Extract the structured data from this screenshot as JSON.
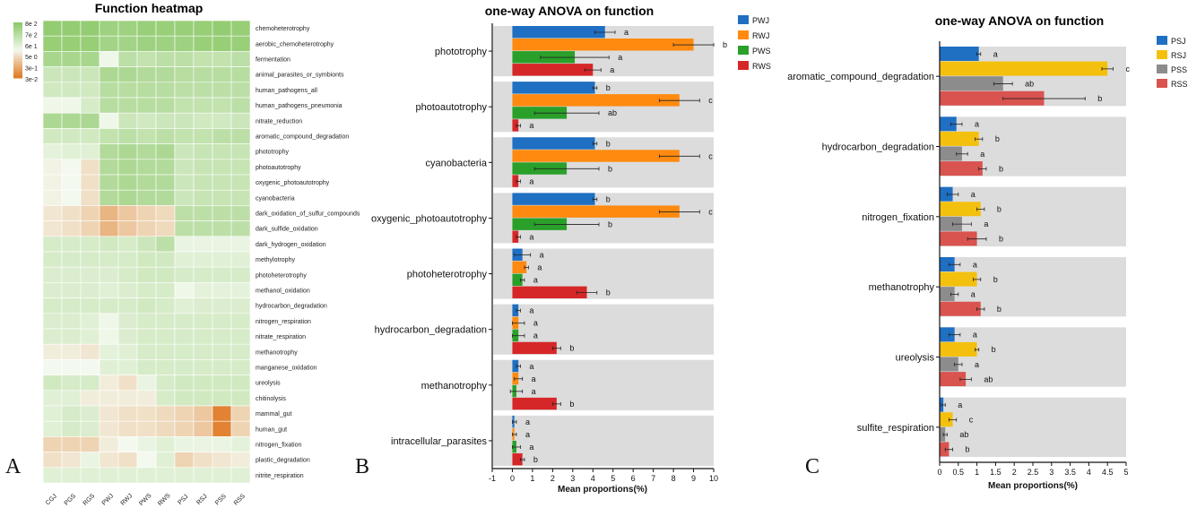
{
  "figure": {
    "panel_letters": [
      "A",
      "B",
      "C"
    ]
  },
  "chart_data": [
    {
      "type": "heatmap",
      "title": "Function heatmap",
      "columns": [
        "CGJ",
        "PGS",
        "RGS",
        "PWJ",
        "RWJ",
        "PWS",
        "RWS",
        "PSJ",
        "RSJ",
        "PSS",
        "RSS"
      ],
      "rows": [
        "chemoheterotrophy",
        "aerobic_chemoheterotrophy",
        "fermentation",
        "animal_parasites_or_symbionts",
        "human_pathogens_all",
        "human_pathogens_pneumonia",
        "nitrate_reduction",
        "aromatic_compound_degradation",
        "phototrophy",
        "photoautotrophy",
        "oxygenic_photoautotrophy",
        "cyanobacteria",
        "dark_oxidation_of_sulfur_compounds",
        "dark_sulfide_oxidation",
        "dark_hydrogen_oxidation",
        "methylotrophy",
        "photoheterotrophy",
        "methanol_oxidation",
        "hydrocarbon_degradation",
        "nitrogen_respiration",
        "nitrate_respiration",
        "methanotrophy",
        "manganese_oxidation",
        "ureolysis",
        "chitinolysis",
        "mammal_gut",
        "human_gut",
        "nitrogen_fixation",
        "plastic_degradation",
        "nitrite_respiration"
      ],
      "values": [
        [
          0.95,
          0.95,
          0.95,
          0.85,
          0.85,
          0.9,
          0.9,
          0.9,
          0.92,
          0.95,
          0.92
        ],
        [
          0.92,
          0.92,
          0.92,
          0.8,
          0.8,
          0.85,
          0.85,
          0.85,
          0.9,
          0.92,
          0.9
        ],
        [
          0.75,
          0.75,
          0.75,
          0.05,
          0.55,
          0.5,
          0.55,
          0.55,
          0.5,
          0.5,
          0.55
        ],
        [
          0.4,
          0.4,
          0.4,
          0.7,
          0.7,
          0.65,
          0.65,
          0.6,
          0.6,
          0.6,
          0.6
        ],
        [
          0.35,
          0.35,
          0.35,
          0.6,
          0.6,
          0.6,
          0.6,
          0.55,
          0.55,
          0.55,
          0.55
        ],
        [
          0.05,
          0.05,
          0.3,
          0.6,
          0.6,
          0.6,
          0.6,
          0.5,
          0.5,
          0.5,
          0.55
        ],
        [
          0.7,
          0.7,
          0.7,
          0.05,
          0.4,
          0.35,
          0.4,
          0.4,
          0.35,
          0.35,
          0.4
        ],
        [
          0.35,
          0.35,
          0.35,
          0.5,
          0.55,
          0.5,
          0.55,
          0.5,
          0.5,
          0.55,
          0.55
        ],
        [
          0.15,
          0.2,
          0.2,
          0.65,
          0.7,
          0.65,
          0.7,
          0.4,
          0.45,
          0.45,
          0.45
        ],
        [
          -0.05,
          0.0,
          -0.2,
          0.65,
          0.7,
          0.65,
          0.65,
          0.4,
          0.45,
          0.45,
          0.45
        ],
        [
          -0.05,
          0.0,
          -0.2,
          0.65,
          0.7,
          0.65,
          0.65,
          0.4,
          0.45,
          0.45,
          0.45
        ],
        [
          -0.05,
          0.0,
          -0.2,
          0.65,
          0.7,
          0.65,
          0.65,
          0.4,
          0.45,
          0.45,
          0.45
        ],
        [
          -0.15,
          -0.2,
          -0.3,
          -0.55,
          -0.4,
          -0.3,
          -0.25,
          0.55,
          0.55,
          0.55,
          0.55
        ],
        [
          -0.15,
          -0.2,
          -0.3,
          -0.55,
          -0.4,
          -0.3,
          -0.25,
          0.55,
          0.55,
          0.55,
          0.55
        ],
        [
          0.3,
          0.3,
          0.3,
          0.35,
          0.3,
          0.4,
          0.55,
          0.1,
          0.1,
          0.1,
          0.1
        ],
        [
          0.3,
          0.3,
          0.3,
          0.3,
          0.3,
          0.35,
          0.35,
          0.2,
          0.2,
          0.2,
          0.2
        ],
        [
          0.25,
          0.25,
          0.25,
          0.25,
          0.3,
          0.35,
          0.35,
          0.3,
          0.3,
          0.3,
          0.3
        ],
        [
          0.25,
          0.25,
          0.25,
          0.2,
          0.25,
          0.3,
          0.3,
          0.05,
          0.15,
          0.15,
          0.15
        ],
        [
          0.3,
          0.3,
          0.3,
          0.3,
          0.3,
          0.35,
          0.3,
          0.2,
          0.25,
          0.25,
          0.25
        ],
        [
          0.25,
          0.25,
          0.2,
          0.05,
          0.25,
          0.3,
          0.3,
          0.3,
          0.3,
          0.3,
          0.3
        ],
        [
          0.25,
          0.25,
          0.2,
          0.05,
          0.25,
          0.3,
          0.3,
          0.3,
          0.3,
          0.3,
          0.3
        ],
        [
          -0.1,
          -0.1,
          -0.15,
          0.15,
          0.2,
          0.3,
          0.3,
          0.3,
          0.3,
          0.3,
          0.3
        ],
        [
          0.0,
          0.0,
          0.0,
          0.2,
          0.2,
          0.3,
          0.3,
          0.3,
          0.3,
          0.3,
          0.3
        ],
        [
          0.35,
          0.3,
          0.3,
          -0.1,
          -0.2,
          0.1,
          0.3,
          0.35,
          0.35,
          0.35,
          0.35
        ],
        [
          0.2,
          0.2,
          -0.1,
          -0.1,
          -0.1,
          -0.1,
          0.3,
          0.35,
          0.35,
          0.35,
          0.35
        ],
        [
          0.2,
          0.3,
          0.25,
          -0.15,
          -0.2,
          -0.2,
          -0.25,
          -0.3,
          -0.4,
          -0.95,
          -0.3
        ],
        [
          0.2,
          0.3,
          0.25,
          -0.15,
          -0.2,
          -0.2,
          -0.25,
          -0.3,
          -0.4,
          -0.95,
          -0.3
        ],
        [
          -0.3,
          -0.3,
          -0.3,
          -0.1,
          0.0,
          0.1,
          0.2,
          0.1,
          0.1,
          0.1,
          0.15
        ],
        [
          -0.2,
          -0.15,
          0.1,
          -0.15,
          -0.2,
          0.0,
          0.2,
          -0.3,
          -0.2,
          -0.15,
          -0.1
        ],
        [
          0.2,
          0.2,
          0.2,
          0.2,
          0.2,
          0.2,
          0.2,
          0.2,
          0.2,
          0.2,
          0.2
        ]
      ],
      "legend_labels": [
        "8e 2",
        "7e 2",
        "6e 1",
        "5e 0",
        "3e-1",
        "3e-2"
      ],
      "colors": {
        "high": "#8fca6c",
        "mid": "#f4f9ef",
        "low": "#e07d28"
      }
    },
    {
      "type": "bar",
      "orientation": "horizontal",
      "title": "one-way ANOVA on function",
      "xlabel": "Mean proportions(%)",
      "xlim": [
        -1,
        10
      ],
      "xticks": [
        -1,
        0,
        1,
        2,
        3,
        4,
        5,
        6,
        7,
        8,
        9,
        10
      ],
      "categories": [
        "phototrophy",
        "photoautotrophy",
        "cyanobacteria",
        "oxygenic_photoautotrophy",
        "photoheterotrophy",
        "hydrocarbon_degradation",
        "methanotrophy",
        "intracellular_parasites"
      ],
      "series": [
        {
          "name": "PWJ",
          "color": "#1f6fc2",
          "values": [
            4.6,
            4.1,
            4.1,
            4.1,
            0.5,
            0.3,
            0.3,
            0.1
          ],
          "errors": [
            0.5,
            0.1,
            0.1,
            0.1,
            0.4,
            0.1,
            0.1,
            0.1
          ],
          "letters": [
            "a",
            "b",
            "b",
            "b",
            "a",
            "a",
            "a",
            "a"
          ]
        },
        {
          "name": "RWJ",
          "color": "#ff8a0f",
          "values": [
            9.0,
            8.3,
            8.3,
            8.3,
            0.7,
            0.3,
            0.3,
            0.1
          ],
          "errors": [
            1.0,
            1.0,
            1.0,
            1.0,
            0.1,
            0.3,
            0.2,
            0.1
          ],
          "letters": [
            "b",
            "c",
            "c",
            "c",
            "a",
            "a",
            "a",
            "a"
          ]
        },
        {
          "name": "PWS",
          "color": "#2aa02a",
          "values": [
            3.1,
            2.7,
            2.7,
            2.7,
            0.5,
            0.3,
            0.2,
            0.2
          ],
          "errors": [
            1.7,
            1.6,
            1.6,
            1.6,
            0.1,
            0.3,
            0.3,
            0.2
          ],
          "letters": [
            "a",
            "ab",
            "b",
            "b",
            "a",
            "a",
            "a",
            "a"
          ]
        },
        {
          "name": "RWS",
          "color": "#d62728",
          "values": [
            4.0,
            0.3,
            0.3,
            0.3,
            3.7,
            2.2,
            2.2,
            0.5
          ],
          "errors": [
            0.4,
            0.1,
            0.1,
            0.1,
            0.5,
            0.2,
            0.2,
            0.1
          ],
          "letters": [
            "a",
            "a",
            "a",
            "a",
            "b",
            "b",
            "b",
            "b"
          ]
        }
      ]
    },
    {
      "type": "bar",
      "orientation": "horizontal",
      "title": "one-way ANOVA on function",
      "xlabel": "Mean proportions(%)",
      "xlim": [
        0,
        5
      ],
      "xticks": [
        "0",
        "0.5",
        "1",
        "1.5",
        "2",
        "2.5",
        "3",
        "3.5",
        "4",
        "4.5",
        "5"
      ],
      "categories": [
        "aromatic_compound_degradation",
        "hydrocarbon_degradation",
        "nitrogen_fixation",
        "methanotrophy",
        "ureolysis",
        "sulfite_respiration"
      ],
      "series": [
        {
          "name": "PSJ",
          "color": "#1f6fc2",
          "values": [
            1.05,
            0.45,
            0.35,
            0.4,
            0.4,
            0.1
          ],
          "errors": [
            0.05,
            0.15,
            0.15,
            0.15,
            0.15,
            0.05
          ],
          "letters": [
            "a",
            "a",
            "a",
            "a",
            "a",
            "a"
          ]
        },
        {
          "name": "RSJ",
          "color": "#f3c00e",
          "values": [
            4.5,
            1.05,
            1.1,
            1.0,
            1.0,
            0.35
          ],
          "errors": [
            0.15,
            0.1,
            0.1,
            0.1,
            0.05,
            0.1
          ],
          "letters": [
            "c",
            "b",
            "b",
            "b",
            "b",
            "c"
          ]
        },
        {
          "name": "PSS",
          "color": "#8c8c8c",
          "values": [
            1.7,
            0.6,
            0.6,
            0.4,
            0.5,
            0.15
          ],
          "errors": [
            0.25,
            0.15,
            0.25,
            0.1,
            0.1,
            0.05
          ],
          "letters": [
            "ab",
            "a",
            "a",
            "a",
            "a",
            "ab"
          ]
        },
        {
          "name": "RSS",
          "color": "#d9534f",
          "values": [
            2.8,
            1.15,
            1.0,
            1.1,
            0.7,
            0.25
          ],
          "errors": [
            1.1,
            0.1,
            0.25,
            0.1,
            0.15,
            0.1
          ],
          "letters": [
            "b",
            "b",
            "b",
            "b",
            "ab",
            "b"
          ]
        }
      ]
    }
  ]
}
